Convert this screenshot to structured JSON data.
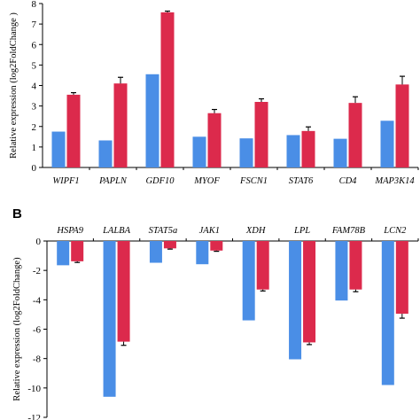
{
  "colors": {
    "series_a": "#4a8ee6",
    "series_b": "#dc2a4c",
    "axis": "#000000"
  },
  "chart_data": [
    {
      "type": "bar",
      "panel_label": "",
      "ylabel": "Relative expression (log2FoldChange )",
      "ylim": [
        0,
        8
      ],
      "yticks": [
        "0",
        "1",
        "2",
        "3",
        "4",
        "5",
        "6",
        "7",
        "8"
      ],
      "categories": [
        "WIPF1",
        "PAPLN",
        "GDF10",
        "MYOF",
        "FSCN1",
        "STAT6",
        "CD4",
        "MAP3K14"
      ],
      "series": [
        {
          "values": [
            1.75,
            1.32,
            4.55,
            1.5,
            1.42,
            1.58,
            1.4,
            2.28
          ]
        },
        {
          "values": [
            3.55,
            4.1,
            7.57,
            2.65,
            3.2,
            1.78,
            3.15,
            4.05
          ],
          "errors": [
            0.1,
            0.3,
            0.06,
            0.18,
            0.15,
            0.2,
            0.3,
            0.4
          ]
        }
      ]
    },
    {
      "type": "bar",
      "panel_label": "B",
      "ylabel": "Relative expression (log2FoldChange)",
      "ylim": [
        -12,
        0
      ],
      "yticks": [
        "-12",
        "-10",
        "-8",
        "-6",
        "-4",
        "-2",
        "0"
      ],
      "categories": [
        "HSPA9",
        "LALBA",
        "STAT5a",
        "JAK1",
        "XDH",
        "LPL",
        "FAM78B",
        "LCN2"
      ],
      "series": [
        {
          "values": [
            -1.65,
            -10.6,
            -1.48,
            -1.58,
            -5.4,
            -8.05,
            -4.05,
            -9.8
          ]
        },
        {
          "values": [
            -1.38,
            -6.85,
            -0.5,
            -0.65,
            -3.3,
            -6.9,
            -3.3,
            -4.95
          ],
          "errors": [
            0.08,
            0.25,
            0.05,
            0.05,
            0.1,
            0.15,
            0.15,
            0.3
          ]
        }
      ]
    }
  ]
}
